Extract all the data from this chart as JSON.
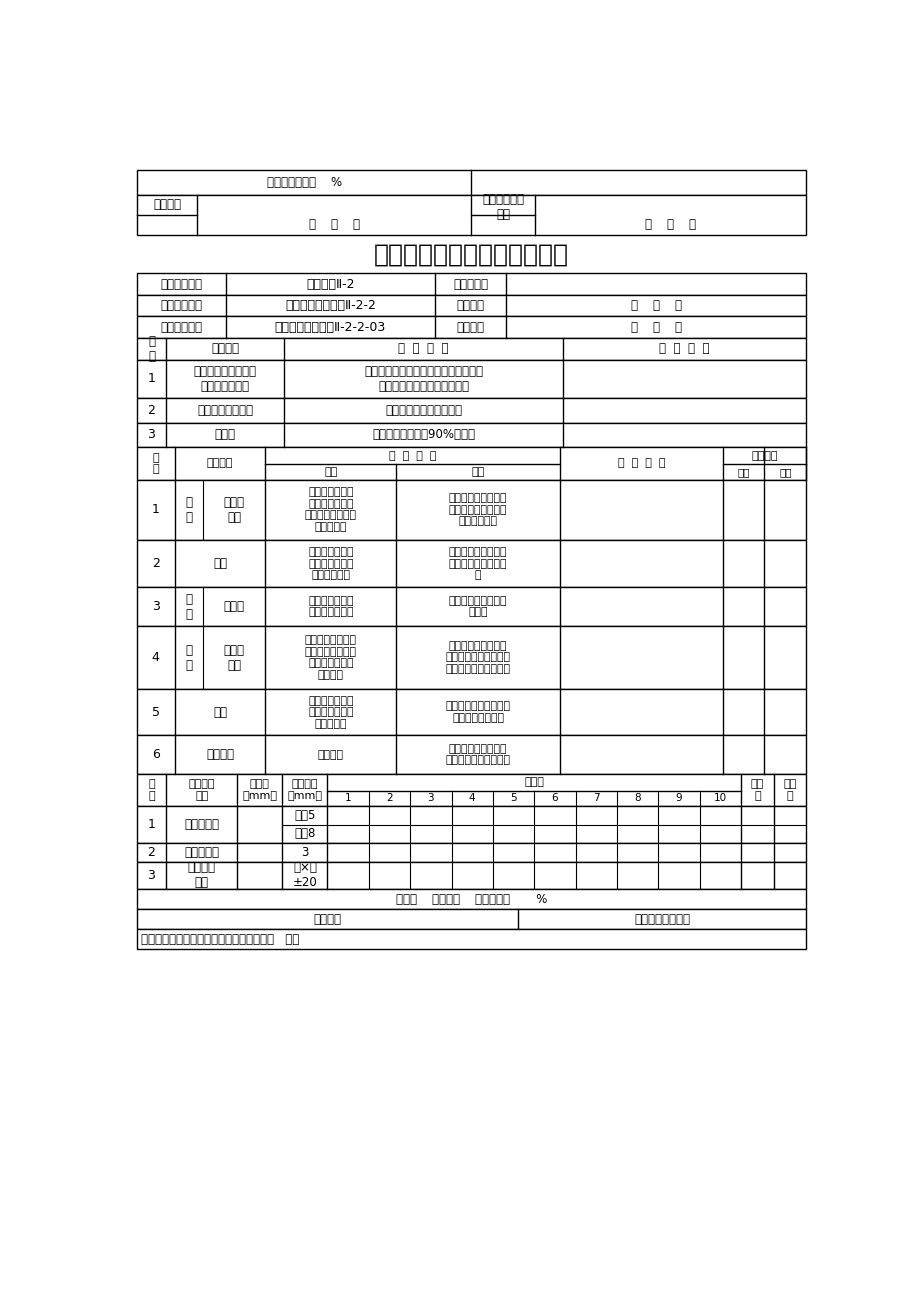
{
  "title": "井房工程单元工程质量评定表",
  "bg_color": "#ffffff",
  "info_rows": [
    {
      "label": "单位工程名称",
      "value": "井房工程Ⅱ-2",
      "label2": "单元工程量",
      "value2": ""
    },
    {
      "label": "分部工程名称",
      "value": "半固定式喷灌井房Ⅱ-2-2",
      "label2": "检验日期",
      "value2": "年    月    日"
    },
    {
      "label": "单元工程名称",
      "value": "半固定式喷灌井房Ⅱ-2-2-03",
      "label2": "评定日期",
      "value2": "年    月    日"
    }
  ],
  "guarantee_rows": [
    {
      "no": "1",
      "item": "砂子、石子、红砖、\n钢筋、防水材料",
      "standard": "必须具有出厂合格证和试验报告单，必\n须符合施工规范和有关规定。",
      "record": ""
    },
    {
      "no": "2",
      "item": "沙浆、砼试块强度",
      "standard": "强度必须达到设计强度。",
      "record": ""
    },
    {
      "no": "3",
      "item": "回填土",
      "standard": "干容重合格率大于90%以上。",
      "record": ""
    }
  ],
  "basic_rows": [
    {
      "no": "1",
      "location": "室\n外",
      "item": "墙面及\n涂料",
      "qualified": "大面平整，空鼓\n裂缝少，涂料基\n本均匀，无掉粉、\n起皮现象。",
      "excellent": "面平，无空鼓裂缝，\n涂料均匀，无掉粉起\n皮流坠现象。"
    },
    {
      "no": "2",
      "location": "",
      "item": "散水",
      "qualified": "结构基本符合设\n计，外观基本平\n整，裂缝较少",
      "excellent": "结构符合设计，外观\n平整，无裂缝破损现\n象"
    },
    {
      "no": "3",
      "location": "屋\n面",
      "item": "彩钢瓦",
      "qualified": "安装较牢固，细\n部结构处理较好",
      "excellent": "安装牢固，细部结构\n处理好"
    },
    {
      "no": "4",
      "location": "室\n内",
      "item": "墙面及\n涂料",
      "qualified": "大面平整，空鼓、\n裂缝不多于一处，\n涂料无掉粉、起\n皮现象。",
      "excellent": "面平，光洁，无空鼓\n裂缝，涂料色泽均匀，\n无掉粉起皮流坠现象。"
    },
    {
      "no": "5",
      "location": "",
      "item": "地面",
      "qualified": "大面平整，无明\n显空鼓、裂缝、\n起砂现象。",
      "excellent": "面平，光洁，无空鼓、\n裂缝、起砂现象。"
    },
    {
      "no": "6",
      "location": "",
      "item": "门窗安装",
      "qualified": "开启灵活",
      "excellent": "开启灵活，玻璃、油\n漆、小五金符合要求。"
    }
  ],
  "deviation_rows": [
    {
      "no": "1",
      "item": "墙面平整度",
      "sub_rows": [
        {
          "tolerance": "清水5"
        },
        {
          "tolerance": "混水8"
        }
      ]
    },
    {
      "no": "2",
      "item": "墙面垂直度",
      "sub_rows": [
        {
          "tolerance": "3"
        }
      ]
    },
    {
      "no": "3",
      "item": "泵房结构\n尺寸",
      "sub_rows": [
        {
          "tolerance": "长×宽\n±20"
        }
      ]
    }
  ],
  "footer1": "共检测    点，合格    点；合格率       %",
  "footer2a": "评定意见",
  "footer2b": "单元工程质量等级",
  "footer3": "保证项目全部符合质量标准，基本项目检查   项，"
}
